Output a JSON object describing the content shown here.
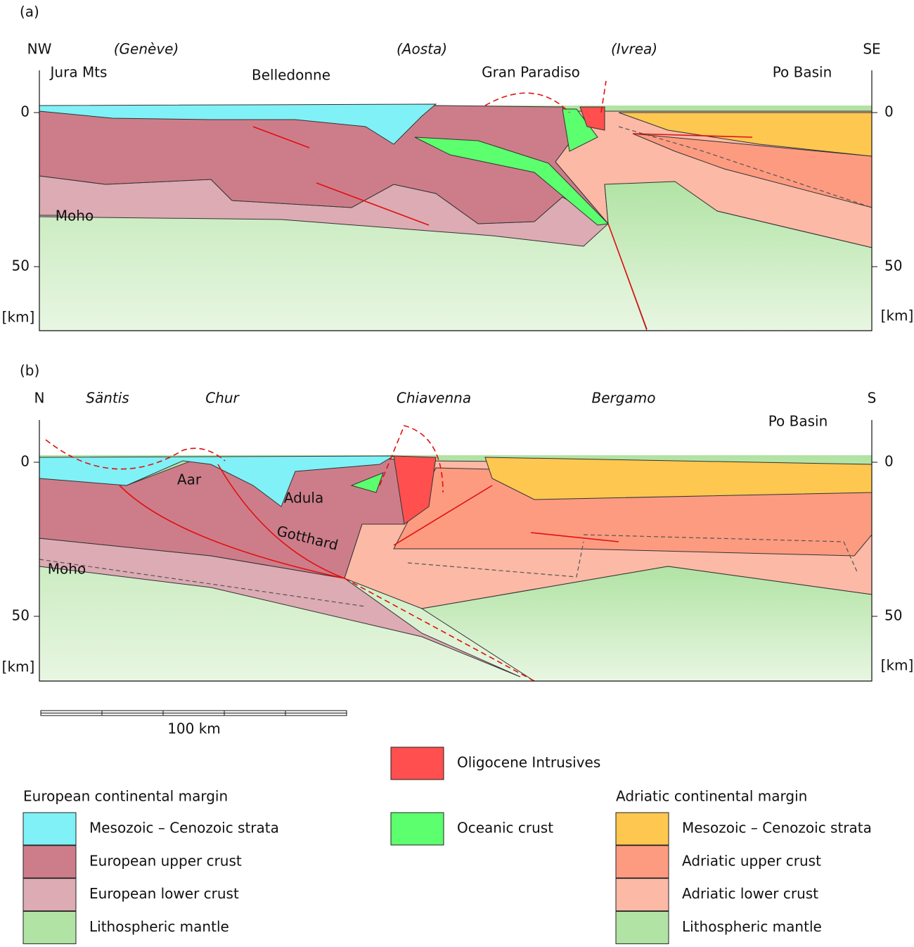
{
  "panels": [
    {
      "label": "(a)",
      "left_end": "NW",
      "right_end": "SE",
      "places": [
        "(Genève)",
        "(Aosta)",
        "(Ivrea)"
      ],
      "units": [
        "Jura Mts",
        "Belledonne",
        "Gran Paradiso",
        "Po Basin"
      ],
      "moho": "Moho",
      "depth_ticks": [
        0,
        50
      ],
      "depth_unit": "[km]"
    },
    {
      "label": "(b)",
      "left_end": "N",
      "right_end": "S",
      "places": [
        "Säntis",
        "Chur",
        "Chiavenna",
        "Bergamo"
      ],
      "units": [
        "Po Basin",
        "Aar",
        "Adula",
        "Gotthard"
      ],
      "moho": "Moho",
      "depth_ticks": [
        0,
        50
      ],
      "depth_unit": "[km]"
    }
  ],
  "scale_bar": "100 km",
  "legend": {
    "center": [
      {
        "label": "Oligocene Intrusives",
        "color": "#ff4f4f"
      },
      {
        "label": "Oceanic crust",
        "color": "#5cff6e"
      }
    ],
    "groups": [
      {
        "title": "European continental margin",
        "items": [
          {
            "label": "Mesozoic – Cenozoic strata",
            "color": "#80f1f7"
          },
          {
            "label": "European upper crust",
            "color": "#cd7d8a"
          },
          {
            "label": "European lower crust",
            "color": "#dcabb3"
          },
          {
            "label": "Lithospheric mantle",
            "color": "#b1e3a4"
          }
        ]
      },
      {
        "title": "Adriatic continental margin",
        "items": [
          {
            "label": "Mesozoic – Cenozoic strata",
            "color": "#fdc750"
          },
          {
            "label": "Adriatic upper crust",
            "color": "#fd9b80"
          },
          {
            "label": "Adriatic lower crust",
            "color": "#fbb9a6"
          },
          {
            "label": "Lithospheric mantle",
            "color": "#b1e3a4"
          }
        ]
      }
    ]
  }
}
